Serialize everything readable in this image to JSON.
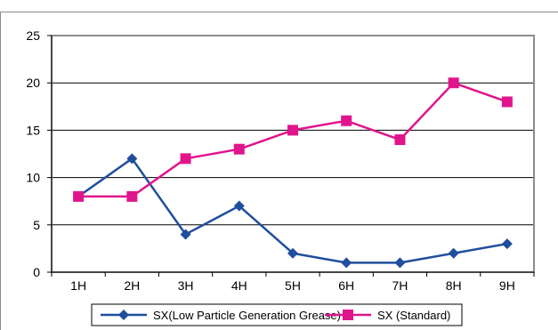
{
  "chart_data": {
    "type": "line",
    "title": "",
    "xlabel": "",
    "ylabel": "",
    "categories": [
      "1H",
      "2H",
      "3H",
      "4H",
      "5H",
      "6H",
      "7H",
      "8H",
      "9H"
    ],
    "ylim": [
      0,
      25
    ],
    "yticks": [
      0,
      5,
      10,
      15,
      20,
      25
    ],
    "grid": true,
    "legend_position": "bottom",
    "series": [
      {
        "name": "SX(Low Particle Generation Grease)",
        "values": [
          8,
          12,
          4,
          7,
          2,
          1,
          1,
          2,
          3
        ],
        "color": "#1f4e9c",
        "marker": "diamond"
      },
      {
        "name": "SX (Standard)",
        "values": [
          8,
          8,
          12,
          13,
          15,
          16,
          14,
          20,
          18
        ],
        "color": "#e0158c",
        "marker": "square"
      }
    ]
  }
}
